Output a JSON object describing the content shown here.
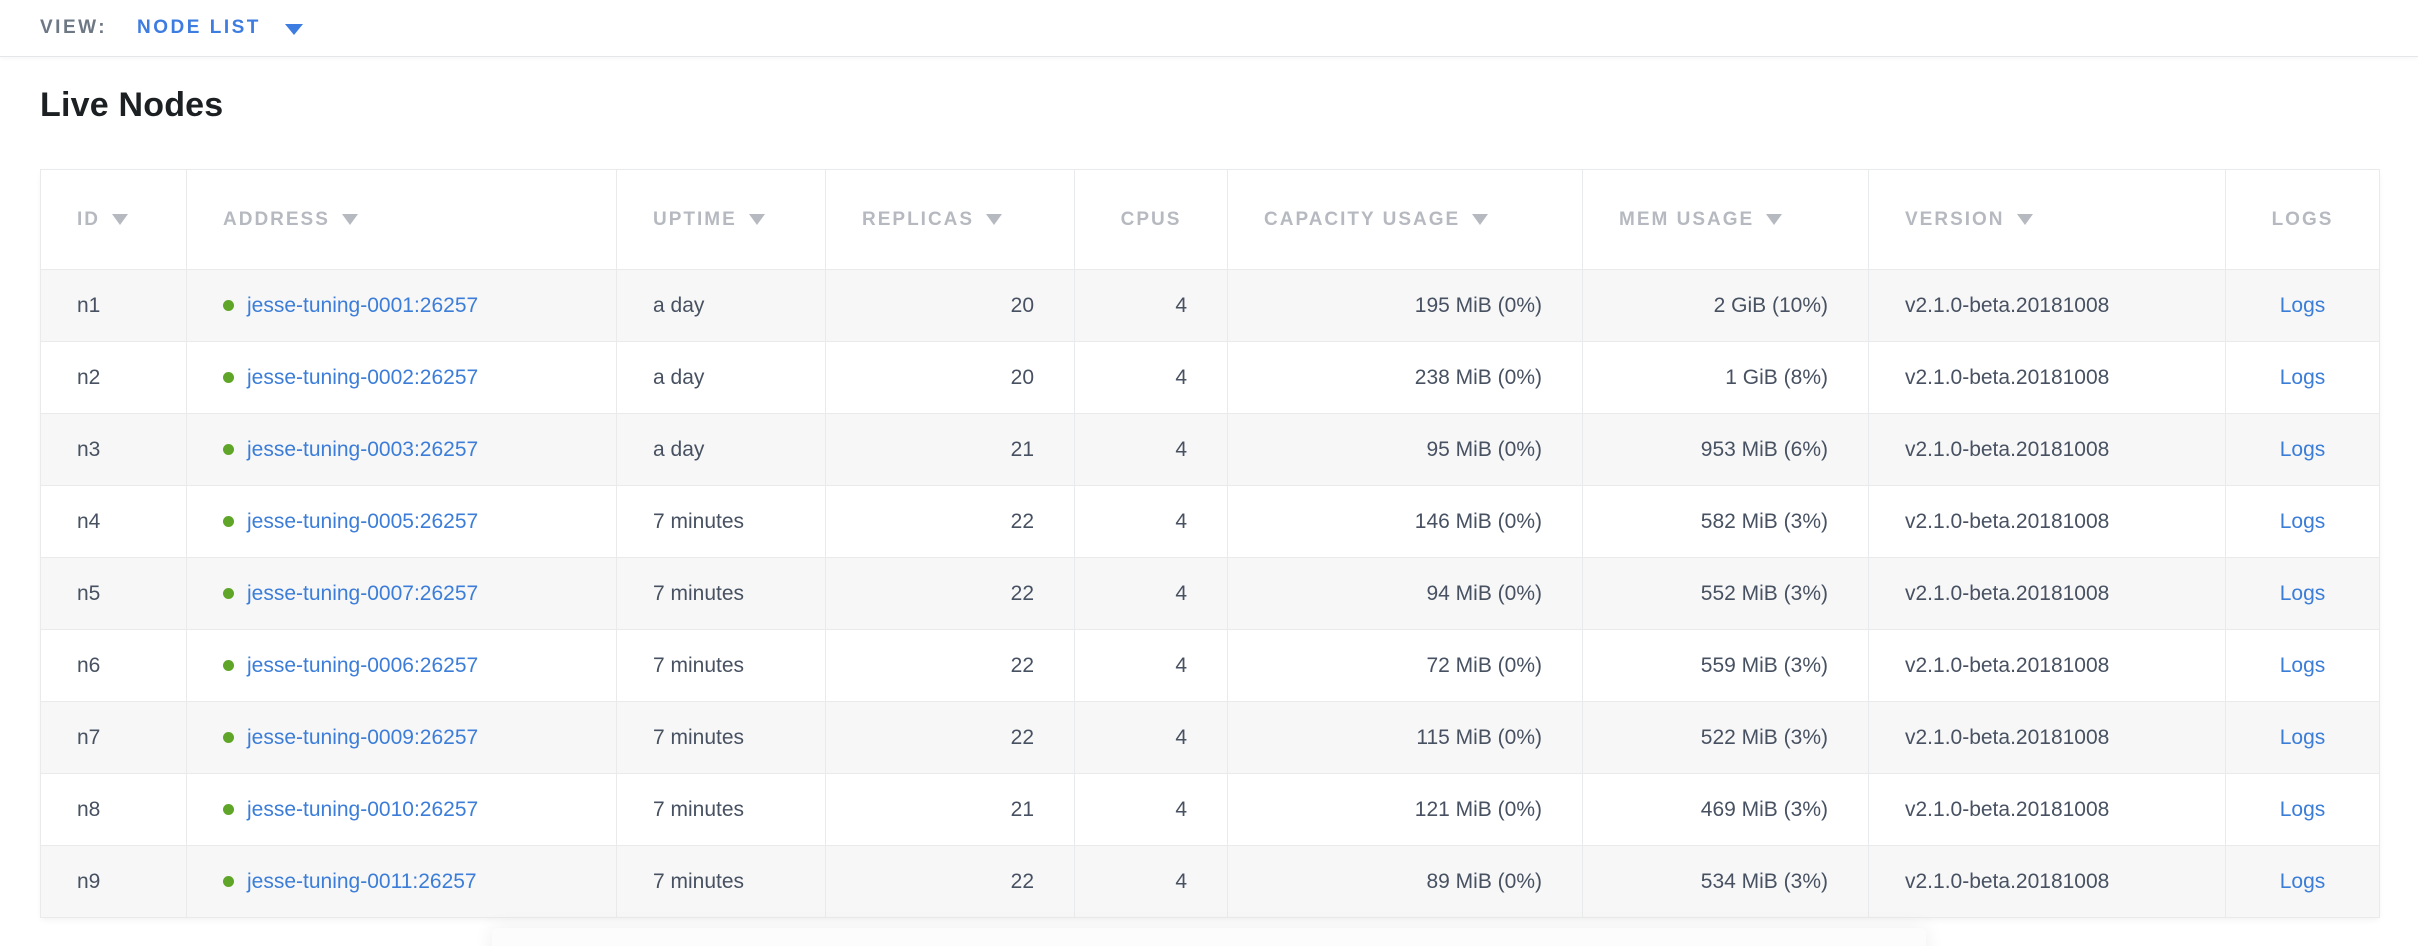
{
  "toolbar": {
    "view_label": "VIEW:",
    "view_value": "NODE LIST"
  },
  "page": {
    "title": "Live Nodes"
  },
  "colors": {
    "accent_blue": "#3d7ce0",
    "link_blue": "#3b7dd8",
    "live_dot_green": "#5fa528",
    "header_gray": "#b6bac0",
    "cell_text": "#475161",
    "row_stripe": "#f7f7f7"
  },
  "icons": {
    "view_dropdown": "chevron-down-icon",
    "sorted_column": "sort-desc-icon",
    "node_status": "live-status-dot"
  },
  "table": {
    "columns": [
      {
        "key": "id",
        "label": "ID",
        "sorted": true,
        "align": "left",
        "header_align": "left"
      },
      {
        "key": "address",
        "label": "ADDRESS",
        "sorted": true,
        "align": "left",
        "header_align": "left",
        "type": "address"
      },
      {
        "key": "uptime",
        "label": "UPTIME",
        "sorted": true,
        "align": "left",
        "header_align": "left"
      },
      {
        "key": "replicas",
        "label": "REPLICAS",
        "sorted": true,
        "align": "right",
        "header_align": "left"
      },
      {
        "key": "cpus",
        "label": "CPUS",
        "sorted": false,
        "align": "right",
        "header_align": "center"
      },
      {
        "key": "capacity",
        "label": "CAPACITY USAGE",
        "sorted": true,
        "align": "right",
        "header_align": "left"
      },
      {
        "key": "mem",
        "label": "MEM USAGE",
        "sorted": true,
        "align": "right",
        "header_align": "left"
      },
      {
        "key": "version",
        "label": "VERSION",
        "sorted": true,
        "align": "left",
        "header_align": "left"
      },
      {
        "key": "logs",
        "label": "LOGS",
        "sorted": false,
        "align": "center",
        "header_align": "center",
        "type": "link"
      }
    ],
    "rows": [
      {
        "id": "n1",
        "address": "jesse-tuning-0001:26257",
        "uptime": "a day",
        "replicas": "20",
        "cpus": "4",
        "capacity": "195 MiB (0%)",
        "mem": "2 GiB (10%)",
        "version": "v2.1.0-beta.20181008",
        "logs": "Logs"
      },
      {
        "id": "n2",
        "address": "jesse-tuning-0002:26257",
        "uptime": "a day",
        "replicas": "20",
        "cpus": "4",
        "capacity": "238 MiB (0%)",
        "mem": "1 GiB (8%)",
        "version": "v2.1.0-beta.20181008",
        "logs": "Logs"
      },
      {
        "id": "n3",
        "address": "jesse-tuning-0003:26257",
        "uptime": "a day",
        "replicas": "21",
        "cpus": "4",
        "capacity": "95 MiB (0%)",
        "mem": "953 MiB (6%)",
        "version": "v2.1.0-beta.20181008",
        "logs": "Logs"
      },
      {
        "id": "n4",
        "address": "jesse-tuning-0005:26257",
        "uptime": "7 minutes",
        "replicas": "22",
        "cpus": "4",
        "capacity": "146 MiB (0%)",
        "mem": "582 MiB (3%)",
        "version": "v2.1.0-beta.20181008",
        "logs": "Logs"
      },
      {
        "id": "n5",
        "address": "jesse-tuning-0007:26257",
        "uptime": "7 minutes",
        "replicas": "22",
        "cpus": "4",
        "capacity": "94 MiB (0%)",
        "mem": "552 MiB (3%)",
        "version": "v2.1.0-beta.20181008",
        "logs": "Logs"
      },
      {
        "id": "n6",
        "address": "jesse-tuning-0006:26257",
        "uptime": "7 minutes",
        "replicas": "22",
        "cpus": "4",
        "capacity": "72 MiB (0%)",
        "mem": "559 MiB (3%)",
        "version": "v2.1.0-beta.20181008",
        "logs": "Logs"
      },
      {
        "id": "n7",
        "address": "jesse-tuning-0009:26257",
        "uptime": "7 minutes",
        "replicas": "22",
        "cpus": "4",
        "capacity": "115 MiB (0%)",
        "mem": "522 MiB (3%)",
        "version": "v2.1.0-beta.20181008",
        "logs": "Logs"
      },
      {
        "id": "n8",
        "address": "jesse-tuning-0010:26257",
        "uptime": "7 minutes",
        "replicas": "21",
        "cpus": "4",
        "capacity": "121 MiB (0%)",
        "mem": "469 MiB (3%)",
        "version": "v2.1.0-beta.20181008",
        "logs": "Logs"
      },
      {
        "id": "n9",
        "address": "jesse-tuning-0011:26257",
        "uptime": "7 minutes",
        "replicas": "22",
        "cpus": "4",
        "capacity": "89 MiB (0%)",
        "mem": "534 MiB (3%)",
        "version": "v2.1.0-beta.20181008",
        "logs": "Logs"
      }
    ]
  }
}
